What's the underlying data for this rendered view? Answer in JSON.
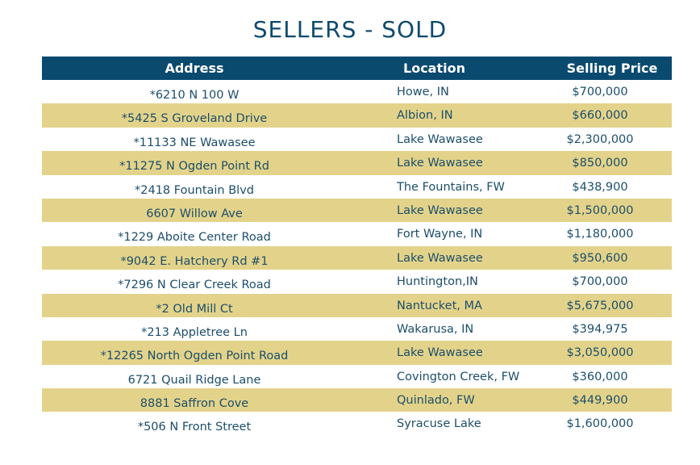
{
  "title": "SELLERS - SOLD",
  "headers": {
    "address": "Address",
    "location": "Location",
    "price": "Selling Price"
  },
  "rows": [
    {
      "address": "*6210 N 100 W",
      "location": "Howe, IN",
      "price": "$700,000"
    },
    {
      "address": "*5425 S Groveland Drive",
      "location": "Albion, IN",
      "price": "$660,000"
    },
    {
      "address": "*11133 NE Wawasee",
      "location": "Lake Wawasee",
      "price": "$2,300,000"
    },
    {
      "address": "*11275 N Ogden Point Rd",
      "location": "Lake Wawasee",
      "price": "$850,000"
    },
    {
      "address": "*2418 Fountain Blvd",
      "location": "The Fountains, FW",
      "price": "$438,900"
    },
    {
      "address": "6607 Willow Ave",
      "location": "Lake Wawasee",
      "price": "$1,500,000"
    },
    {
      "address": "*1229 Aboite Center Road",
      "location": "Fort Wayne, IN",
      "price": "$1,180,000"
    },
    {
      "address": "*9042 E. Hatchery Rd #1",
      "location": "Lake Wawasee",
      "price": "$950,600"
    },
    {
      "address": "*7296 N Clear Creek Road",
      "location": "Huntington,IN",
      "price": "$700,000"
    },
    {
      "address": "*2 Old Mill Ct",
      "location": "Nantucket, MA",
      "price": "$5,675,000"
    },
    {
      "address": "*213 Appletree Ln",
      "location": "Wakarusa, IN",
      "price": "$394,975"
    },
    {
      "address": "*12265 North Ogden Point Road",
      "location": "Lake Wawasee",
      "price": "$3,050,000"
    },
    {
      "address": "6721 Quail Ridge Lane",
      "location": "Covington Creek, FW",
      "price": "$360,000"
    },
    {
      "address": "8881 Saffron Cove",
      "location": "Quinlado, FW",
      "price": "$449,900"
    },
    {
      "address": "*506 N Front Street",
      "location": "Syracuse Lake",
      "price": "$1,600,000"
    }
  ],
  "colors": {
    "header_bg": "#0b4a6f",
    "stripe": "#e3d38a",
    "text": "#1c4e6b"
  }
}
